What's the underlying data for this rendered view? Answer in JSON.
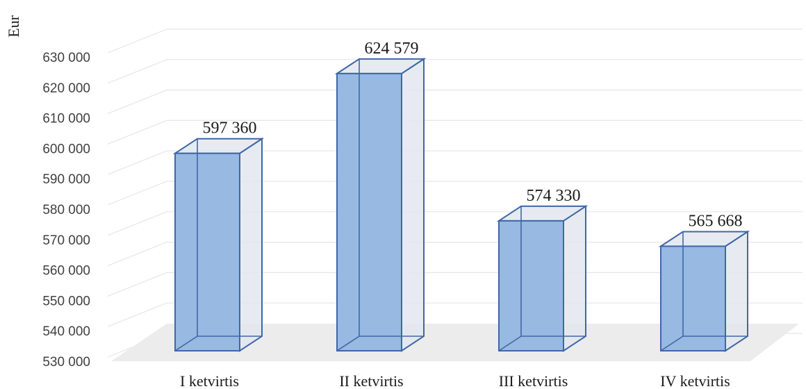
{
  "chart_data": {
    "type": "bar",
    "title": "",
    "xlabel": "",
    "ylabel": "Eur",
    "ylim": [
      530000,
      630000
    ],
    "yticks": [
      530000,
      540000,
      550000,
      560000,
      570000,
      580000,
      590000,
      600000,
      610000,
      620000,
      630000
    ],
    "ytick_labels": [
      "530 000",
      "540 000",
      "550 000",
      "560 000",
      "570 000",
      "580 000",
      "590 000",
      "600 000",
      "610 000",
      "620 000",
      "630 000"
    ],
    "categories": [
      "I ketvirtis",
      "II ketvirtis",
      "III ketvirtis",
      "IV ketvirtis"
    ],
    "values": [
      597360,
      624579,
      574330,
      565668
    ],
    "data_labels": [
      "597 360",
      "624 579",
      "574 330",
      "565 668"
    ],
    "grid": true,
    "style": "3d-column",
    "colors": {
      "bar_front": "#97b9e2",
      "bar_edge": "#3f67a6",
      "bar_side": "#e3e8ee",
      "floor": "#ececec",
      "grid": "#e6e6e6"
    }
  }
}
